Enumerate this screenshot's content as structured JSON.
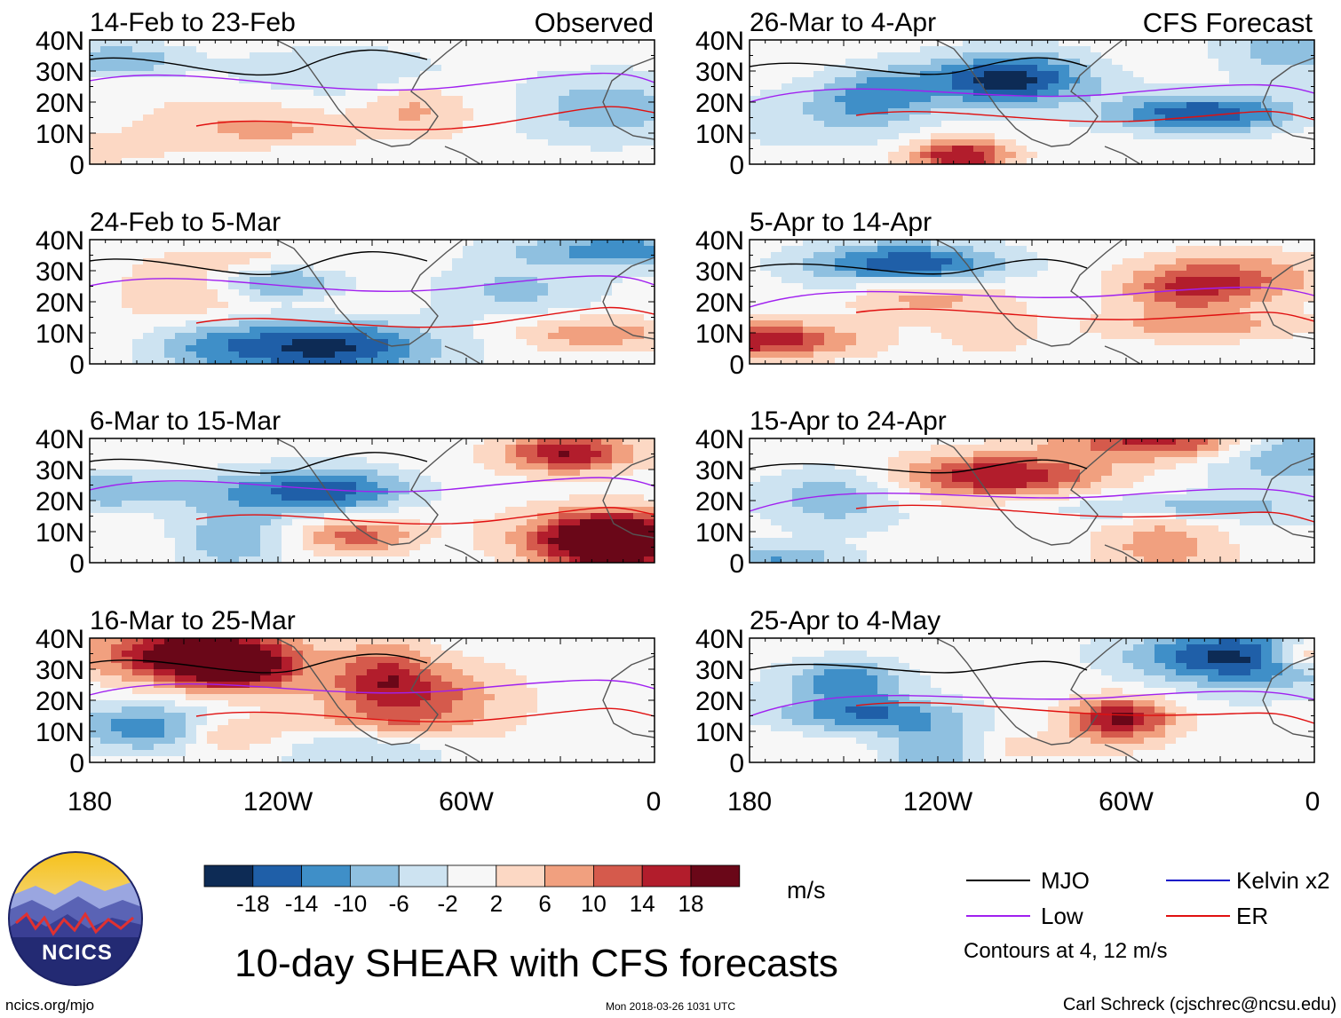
{
  "title": "10-day SHEAR with CFS forecasts",
  "columns": {
    "left_label": "Observed",
    "right_label": "CFS Forecast"
  },
  "panels_left": [
    {
      "period": "14-Feb to 23-Feb",
      "seed": 1
    },
    {
      "period": "24-Feb to 5-Mar",
      "seed": 2
    },
    {
      "period": "6-Mar to 15-Mar",
      "seed": 3
    },
    {
      "period": "16-Mar to 25-Mar",
      "seed": 4
    }
  ],
  "panels_right": [
    {
      "period": "26-Mar to 4-Apr",
      "seed": 5
    },
    {
      "period": "5-Apr to 14-Apr",
      "seed": 6
    },
    {
      "period": "15-Apr to 24-Apr",
      "seed": 7
    },
    {
      "period": "25-Apr to 4-May",
      "seed": 8
    }
  ],
  "y_axis_labels": [
    "40N",
    "30N",
    "20N",
    "10N",
    "0"
  ],
  "x_axis_labels": [
    "180",
    "120W",
    "60W",
    "0"
  ],
  "colorbar": {
    "unit": "m/s",
    "ticks": [
      "-18",
      "-14",
      "-10",
      "-6",
      "-2",
      "2",
      "6",
      "10",
      "14",
      "18"
    ],
    "colors": [
      "#0d2b55",
      "#1f5fa8",
      "#3f8fc8",
      "#8fc0e0",
      "#cde3f1",
      "#f7f7f7",
      "#fcd8c4",
      "#f1a07f",
      "#d55a4c",
      "#b21d2c",
      "#6a0718"
    ]
  },
  "legend": {
    "items": [
      {
        "label": "MJO",
        "color": "#000000"
      },
      {
        "label": "Kelvin x2",
        "color": "#1010c8"
      },
      {
        "label": "Low",
        "color": "#a020f0"
      },
      {
        "label": "ER",
        "color": "#e01010"
      }
    ],
    "note": "Contours at 4, 12 m/s"
  },
  "logo": {
    "text": "NCICS"
  },
  "footer": {
    "url": "ncics.org/mjo",
    "timestamp": "Mon 2018-03-26 1031 UTC",
    "credit": "Carl Schreck (cjschrec@ncsu.edu)"
  }
}
